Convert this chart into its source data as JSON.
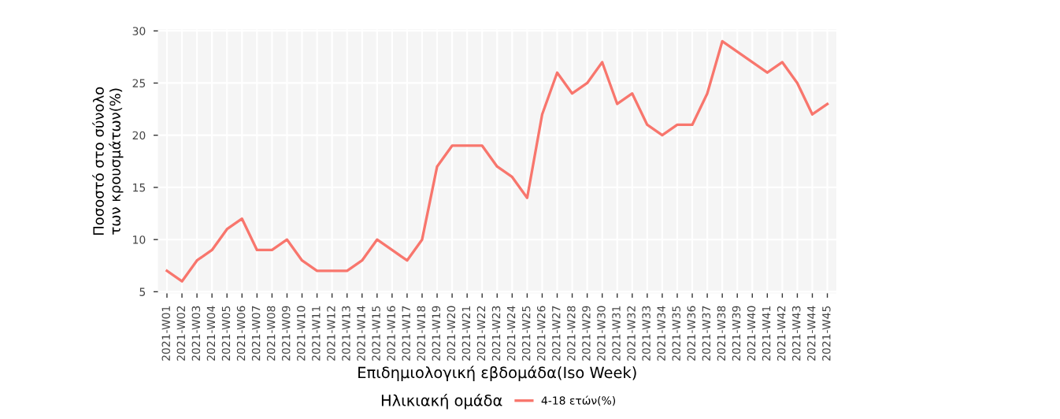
{
  "chart_data": {
    "type": "line",
    "xlabel": "Επιδημιολογική εβδομάδα(Iso Week)",
    "ylabel": "Ποσοστό στο σύνολο\nτων κρουσμάτων(%)",
    "legend_title": "Ηλικιακή ομάδα",
    "categories": [
      "2021-W01",
      "2021-W02",
      "2021-W03",
      "2021-W04",
      "2021-W05",
      "2021-W06",
      "2021-W07",
      "2021-W08",
      "2021-W09",
      "2021-W10",
      "2021-W11",
      "2021-W12",
      "2021-W13",
      "2021-W14",
      "2021-W15",
      "2021-W16",
      "2021-W17",
      "2021-W18",
      "2021-W19",
      "2021-W20",
      "2021-W21",
      "2021-W22",
      "2021-W23",
      "2021-W24",
      "2021-W25",
      "2021-W26",
      "2021-W27",
      "2021-W28",
      "2021-W29",
      "2021-W30",
      "2021-W31",
      "2021-W32",
      "2021-W33",
      "2021-W34",
      "2021-W35",
      "2021-W36",
      "2021-W37",
      "2021-W38",
      "2021-W39",
      "2021-W40",
      "2021-W41",
      "2021-W42",
      "2021-W43",
      "2021-W44",
      "2021-W45"
    ],
    "series": [
      {
        "name": "4-18 ετών(%)",
        "color": "#f8766d",
        "values": [
          7,
          6,
          8,
          9,
          11,
          12,
          9,
          9,
          10,
          8,
          7,
          7,
          7,
          8,
          10,
          9,
          8,
          10,
          17,
          19,
          19,
          19,
          17,
          16,
          14,
          22,
          26,
          24,
          25,
          27,
          23,
          24,
          21,
          20,
          21,
          21,
          24,
          29,
          28,
          27,
          26,
          27,
          25,
          22,
          23
        ]
      }
    ],
    "ylim": [
      4.85,
      30.15
    ],
    "yticks": [
      5,
      10,
      15,
      20,
      25,
      30
    ],
    "grid": true,
    "legend": "bottom",
    "marker": "none",
    "line_style": "solid"
  }
}
